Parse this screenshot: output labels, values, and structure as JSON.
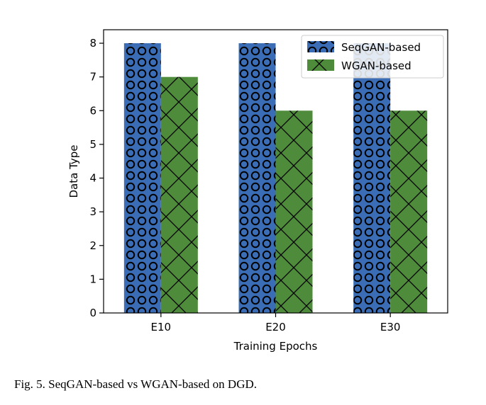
{
  "caption": "Fig. 5. SeqGAN-based vs WGAN-based on DGD.",
  "chart_data": {
    "type": "bar",
    "categories": [
      "E10",
      "E20",
      "E30"
    ],
    "series": [
      {
        "name": "SeqGAN-based",
        "values": [
          8,
          8,
          8
        ],
        "color": "#3a6db5",
        "hatch": "circles"
      },
      {
        "name": "WGAN-based",
        "values": [
          7,
          6,
          6
        ],
        "color": "#4e8c3c",
        "hatch": "crosses"
      }
    ],
    "xlabel": "Training Epochs",
    "ylabel": "Data Type",
    "ylim": [
      0,
      8.4
    ],
    "yticks": [
      0,
      1,
      2,
      3,
      4,
      5,
      6,
      7,
      8
    ],
    "legend": "top-right",
    "grid": false
  }
}
